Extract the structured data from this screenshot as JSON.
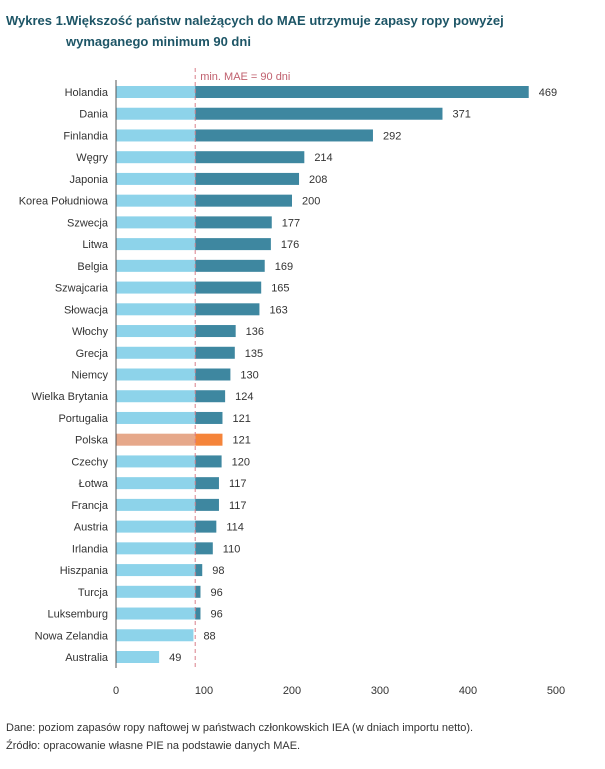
{
  "title": {
    "label": "Wykres 1.",
    "text": "Większość państw należących do MAE utrzymuje zapasy ropy powyżej wymaganego minimum 90 dni"
  },
  "chart_data": {
    "type": "bar",
    "orientation": "horizontal",
    "categories": [
      "Holandia",
      "Dania",
      "Finlandia",
      "Węgry",
      "Japonia",
      "Korea Południowa",
      "Szwecja",
      "Litwa",
      "Belgia",
      "Szwajcaria",
      "Słowacja",
      "Włochy",
      "Grecja",
      "Niemcy",
      "Wielka Brytania",
      "Portugalia",
      "Polska",
      "Czechy",
      "Łotwa",
      "Francja",
      "Austria",
      "Irlandia",
      "Hiszpania",
      "Turcja",
      "Luksemburg",
      "Nowa Zelandia",
      "Australia"
    ],
    "values": [
      469,
      371,
      292,
      214,
      208,
      200,
      177,
      176,
      169,
      165,
      163,
      136,
      135,
      130,
      124,
      121,
      121,
      120,
      117,
      117,
      114,
      110,
      98,
      96,
      96,
      88,
      49
    ],
    "highlight": "Polska",
    "reference_line": {
      "value": 90,
      "label": "min. MAE = 90 dni"
    },
    "xlim": [
      0,
      500
    ],
    "xticks": [
      0,
      100,
      200,
      300,
      400,
      500
    ],
    "grid": false,
    "colors": {
      "below": "#8dd3ea",
      "above": "#3e87a0",
      "highlight_below": "#e6a88a",
      "highlight_above": "#f5843a",
      "reference": "#d9808a"
    }
  },
  "notes": {
    "data": "Dane: poziom zapasów ropy naftowej w państwach członkowskich IEA (w dniach importu netto).",
    "source": "Źródło: opracowanie własne PIE na podstawie danych MAE."
  }
}
